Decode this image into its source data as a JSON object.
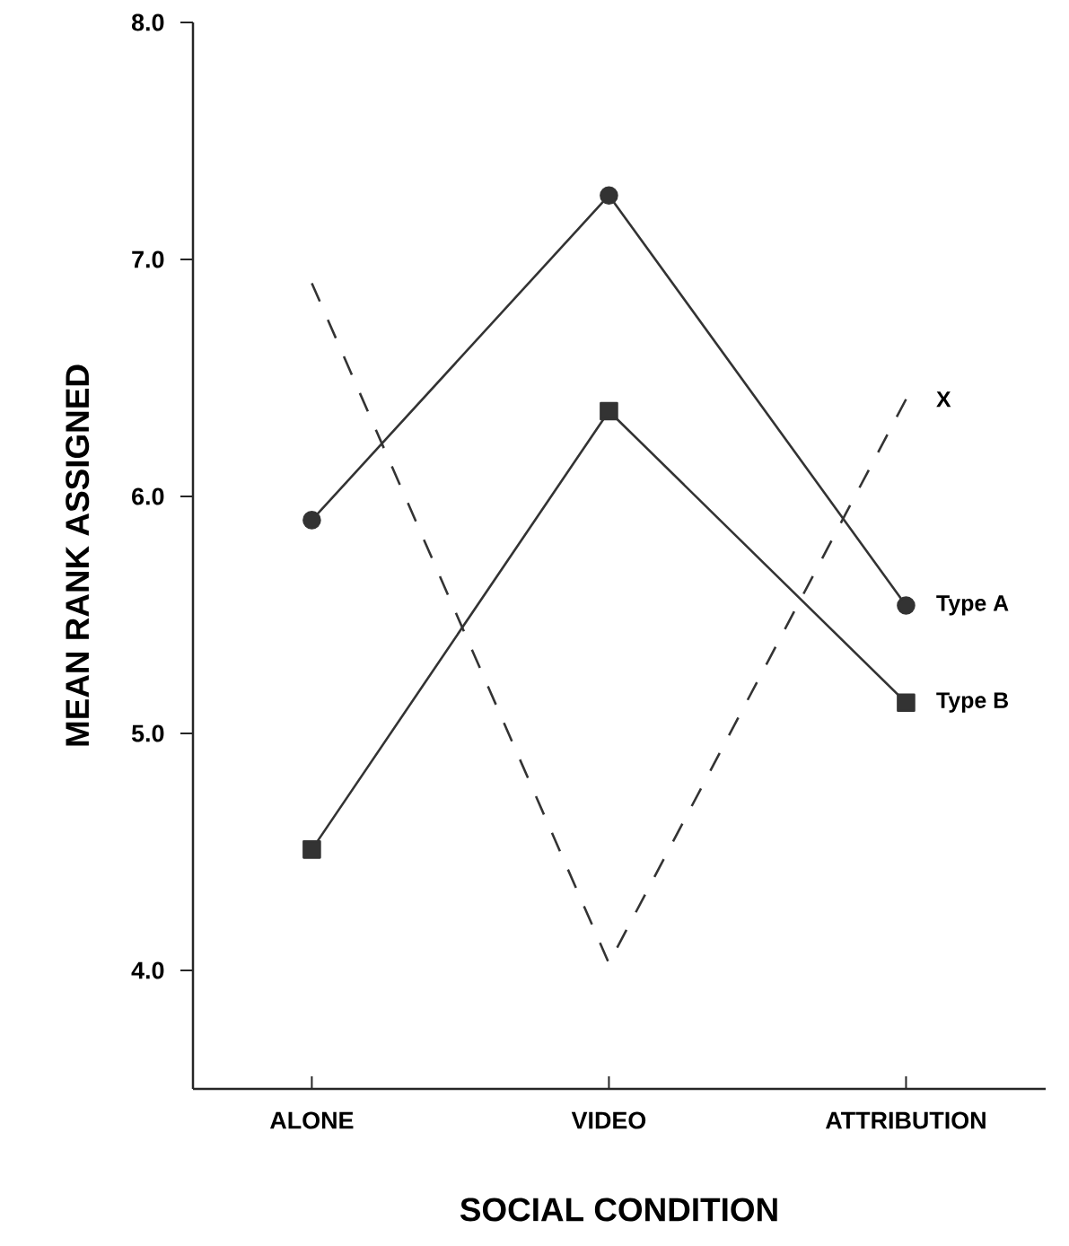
{
  "chart_data": {
    "type": "line",
    "xlabel": "SOCIAL CONDITION",
    "ylabel": "MEAN RANK ASSIGNED",
    "categories": [
      "ALONE",
      "VIDEO",
      "ATTRIBUTION"
    ],
    "series": [
      {
        "name": "Type A",
        "color": "#333333",
        "marker": "circle",
        "line_style": "solid",
        "values": [
          5.9,
          7.27,
          5.54
        ]
      },
      {
        "name": "Type B",
        "color": "#333333",
        "marker": "square",
        "line_style": "solid",
        "values": [
          4.51,
          6.36,
          5.13
        ]
      },
      {
        "name": "X",
        "color": "#333333",
        "marker": "none",
        "line_style": "dashed",
        "values": [
          6.9,
          4.03,
          6.41
        ]
      }
    ],
    "ylim": [
      3.5,
      8.0
    ],
    "yticks": [
      {
        "value": 4,
        "label": "4.0"
      },
      {
        "value": 5,
        "label": "5.0"
      },
      {
        "value": 6,
        "label": "6.0"
      },
      {
        "value": 7,
        "label": "7.0"
      },
      {
        "value": 8,
        "label": "8.0"
      }
    ],
    "grid": false
  }
}
